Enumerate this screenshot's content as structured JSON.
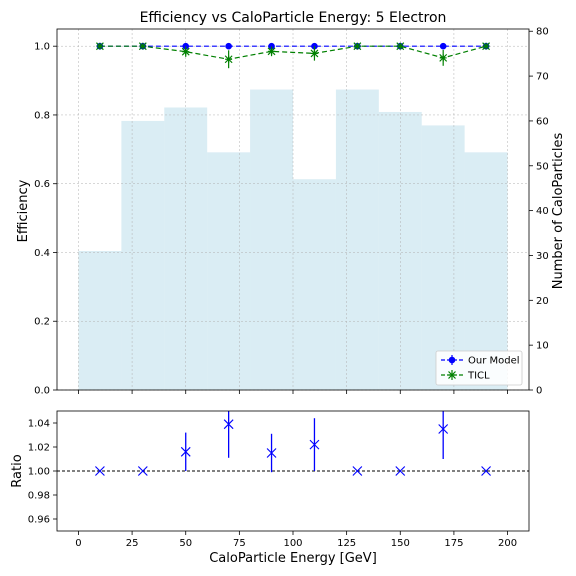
{
  "chart_data": [
    {
      "type": "bar+line",
      "title": "Efficiency vs CaloParticle Energy: 5 Electron",
      "ylabel": "Efficiency",
      "y2label": "Number of CaloParticles",
      "xlim": [
        -10,
        210
      ],
      "ylim": [
        0,
        1.05
      ],
      "y2lim": [
        0,
        80.5
      ],
      "yticks": [
        "0.0",
        "0.2",
        "0.4",
        "0.6",
        "0.8",
        "1.0"
      ],
      "y2ticks": [
        "0",
        "10",
        "20",
        "30",
        "40",
        "50",
        "60",
        "70",
        "80"
      ],
      "grid": true,
      "legend": "lower-right",
      "histogram": {
        "color": "#add8e6",
        "bin_edges": [
          0,
          20,
          40,
          60,
          80,
          100,
          120,
          140,
          160,
          180,
          200
        ],
        "counts": [
          31,
          60,
          63,
          53,
          67,
          47,
          67,
          62,
          59,
          53
        ]
      },
      "series": [
        {
          "name": "Our Model",
          "color": "#0000ff",
          "marker": "circle",
          "x": [
            10,
            30,
            50,
            70,
            90,
            110,
            130,
            150,
            170,
            190
          ],
          "y": [
            1.0,
            1.0,
            1.0,
            1.0,
            1.0,
            1.0,
            1.0,
            1.0,
            1.0,
            1.0
          ],
          "yerr": [
            0.003,
            0.003,
            0.003,
            0.003,
            0.003,
            0.003,
            0.003,
            0.003,
            0.003,
            0.003
          ]
        },
        {
          "name": "TICL",
          "color": "#008000",
          "marker": "x",
          "x": [
            10,
            30,
            50,
            70,
            90,
            110,
            130,
            150,
            170,
            190
          ],
          "y": [
            1.0,
            1.0,
            0.984,
            0.962,
            0.985,
            0.979,
            1.0,
            1.0,
            0.966,
            1.0
          ],
          "yerr": [
            0.003,
            0.003,
            0.015,
            0.026,
            0.014,
            0.021,
            0.003,
            0.003,
            0.023,
            0.003
          ]
        }
      ]
    },
    {
      "type": "scatter",
      "xlabel": "CaloParticle Energy [GeV]",
      "ylabel": "Ratio",
      "xlim": [
        -10,
        210
      ],
      "ylim": [
        0.95,
        1.05
      ],
      "xticks": [
        "0",
        "25",
        "50",
        "75",
        "100",
        "125",
        "150",
        "175",
        "200"
      ],
      "yticks": [
        "0.96",
        "0.98",
        "1.00",
        "1.02",
        "1.04"
      ],
      "reference_line": 1.0,
      "series": [
        {
          "color": "#0000ff",
          "marker": "x",
          "x": [
            10,
            30,
            50,
            70,
            90,
            110,
            130,
            150,
            170,
            190
          ],
          "y": [
            1.0,
            1.0,
            1.016,
            1.039,
            1.015,
            1.022,
            1.0,
            1.0,
            1.035,
            1.0
          ],
          "yerr": [
            0,
            0,
            0.016,
            0.028,
            0.016,
            0.022,
            0,
            0,
            0.025,
            0
          ]
        }
      ]
    }
  ]
}
